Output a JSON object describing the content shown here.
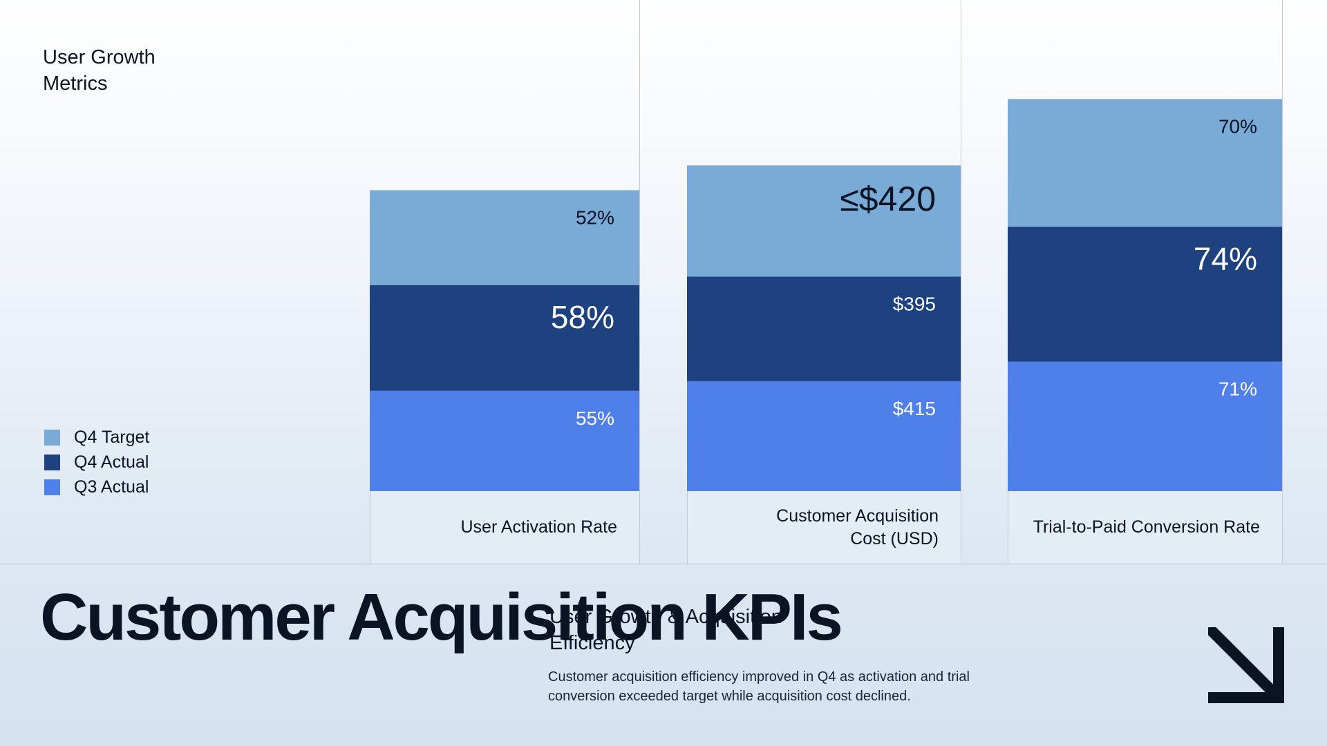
{
  "panel_title": "User Growth Metrics",
  "headline": "Customer Acquisition KPIs",
  "subheading": "User Growth & Acquisition Efficiency",
  "description": "Customer acquisition efficiency improved in Q4 as activation and trial conversion exceeded target while acquisition cost declined.",
  "icons": {
    "corner_arrow": "arrow-down-right-icon"
  },
  "colors": {
    "q4_target": "#7aaad6",
    "q4_actual": "#1e4180",
    "q3_actual": "#4f80e9",
    "text_dark": "#0a1424",
    "text_light": "#ffffff"
  },
  "legend": [
    {
      "label": "Q4 Target",
      "color": "#7aaad6"
    },
    {
      "label": "Q4 Actual",
      "color": "#1e4180"
    },
    {
      "label": "Q3 Actual",
      "color": "#4f80e9"
    }
  ],
  "chart_data": {
    "type": "bar",
    "stacked": true,
    "categories": [
      "User Activation Rate",
      "Customer Acquisition Cost (USD)",
      "Trial-to-Paid Conversion Rate"
    ],
    "series": [
      {
        "name": "Q3 Actual",
        "values": [
          55,
          415,
          71
        ],
        "labels": [
          "55%",
          "$415",
          "71%"
        ]
      },
      {
        "name": "Q4 Actual",
        "values": [
          58,
          395,
          74
        ],
        "labels": [
          "58%",
          "$395",
          "74%"
        ]
      },
      {
        "name": "Q4 Target",
        "values": [
          52,
          420,
          70
        ],
        "labels": [
          "52%",
          "≤$420",
          "70%"
        ]
      }
    ],
    "legend_position": "bottom-left",
    "grid": false
  }
}
